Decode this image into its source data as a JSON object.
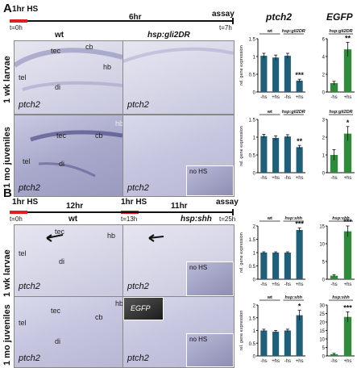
{
  "panelA": {
    "letter": "A",
    "timeline": {
      "hs_label": "1hr HS",
      "mid_label": "6hr",
      "assay_label": "assay",
      "t_start": "t=0h",
      "t_end": "t=7h"
    },
    "col_wt": "wt",
    "col_tg": "hsp:gli2DR",
    "row1_label": "1 wk larvae",
    "row2_label": "1 mo juveniles",
    "gene_label": "ptch2",
    "anatomy_row1": [
      "tec",
      "cb",
      "hb",
      "tel",
      "di"
    ],
    "anatomy_row2": [
      "tec",
      "cb",
      "hb",
      "tel",
      "di"
    ],
    "inset_label": "no HS"
  },
  "panelB": {
    "letter": "B",
    "timeline": {
      "hs1_label": "1hr HS",
      "mid1_label": "12hr",
      "hs2_label": "1hr HS",
      "mid2_label": "11hr",
      "assay_label": "assay",
      "t_start": "t=0h",
      "t_mid": "t=13h",
      "t_end": "t=25h"
    },
    "col_wt": "wt",
    "col_tg": "hsp:shh",
    "row1_label": "1 wk larvae",
    "row2_label": "1 mo juveniles",
    "gene_label": "ptch2",
    "anatomy_row1": [
      "tec",
      "hb",
      "tel",
      "di"
    ],
    "anatomy_row2": [
      "tec",
      "cb",
      "hb",
      "tel",
      "di"
    ],
    "inset_label": "no HS",
    "egfp_inset_label": "EGFP"
  },
  "headers": {
    "ptch2": "ptch2",
    "egfp": "EGFP"
  },
  "colors": {
    "blue_bar": "#1f5f7a",
    "green_bar": "#2e8b3a",
    "timeline_red": "#e02020"
  },
  "chart_data": [
    {
      "id": "A-ptch2-1wk",
      "type": "bar",
      "categories": [
        "-hs",
        "+hs",
        "-hs",
        "+hs"
      ],
      "values": [
        1.02,
        0.97,
        1.02,
        0.32
      ],
      "errors": [
        0.07,
        0.07,
        0.07,
        0.04
      ],
      "groups": [
        "wt",
        "hsp:gli2DR"
      ],
      "ylabel": "rel. gene expression",
      "ylim": [
        0,
        1.5
      ],
      "yticks": [
        0,
        0.5,
        1,
        1.5
      ],
      "annotation": "***",
      "annot_index": 3,
      "color": "#1f5f7a"
    },
    {
      "id": "A-egfp-1wk",
      "type": "bar",
      "categories": [
        "-hs",
        "+hs"
      ],
      "values": [
        1.0,
        4.8
      ],
      "errors": [
        0.2,
        0.8
      ],
      "groups": [
        "hsp:gli2DR"
      ],
      "ylim": [
        0,
        6
      ],
      "yticks": [
        0,
        2,
        4,
        6
      ],
      "annotation": "**",
      "annot_index": 1,
      "color": "#2e8b3a"
    },
    {
      "id": "A-ptch2-1mo",
      "type": "bar",
      "categories": [
        "-hs",
        "+hs",
        "-hs",
        "+hs"
      ],
      "values": [
        1.03,
        0.98,
        1.02,
        0.72
      ],
      "errors": [
        0.05,
        0.06,
        0.05,
        0.05
      ],
      "groups": [
        "wt",
        "hsp:gli2DR"
      ],
      "ylabel": "rel. gene expression",
      "ylim": [
        0,
        1.5
      ],
      "yticks": [
        0,
        0.5,
        1,
        1.5
      ],
      "annotation": "**",
      "annot_index": 3,
      "color": "#1f5f7a"
    },
    {
      "id": "A-egfp-1mo",
      "type": "bar",
      "categories": [
        "-hs",
        "+hs"
      ],
      "values": [
        1.0,
        2.2
      ],
      "errors": [
        0.3,
        0.4
      ],
      "groups": [
        "hsp:gli2DR"
      ],
      "ylim": [
        0,
        3
      ],
      "yticks": [
        0,
        1,
        2,
        3
      ],
      "annotation": "*",
      "annot_index": 1,
      "color": "#2e8b3a"
    },
    {
      "id": "B-ptch2-1wk",
      "type": "bar",
      "categories": [
        "-hs",
        "+hs",
        "-hs",
        "+hs"
      ],
      "values": [
        1.0,
        1.0,
        1.0,
        1.85
      ],
      "errors": [
        0.03,
        0.03,
        0.03,
        0.08
      ],
      "groups": [
        "wt",
        "hsp:shh"
      ],
      "ylabel": "rel. gene expression",
      "ylim": [
        0,
        2
      ],
      "yticks": [
        0,
        0.5,
        1,
        1.5,
        2
      ],
      "annotation": "***",
      "annot_index": 3,
      "color": "#1f5f7a"
    },
    {
      "id": "B-egfp-1wk",
      "type": "bar",
      "categories": [
        "-hs",
        "+hs"
      ],
      "values": [
        1.0,
        13.5
      ],
      "errors": [
        0.3,
        1.5
      ],
      "groups": [
        "hsp:shh"
      ],
      "ylim": [
        0,
        15
      ],
      "yticks": [
        0,
        5,
        10,
        15
      ],
      "annotation": "***",
      "annot_index": 1,
      "color": "#2e8b3a"
    },
    {
      "id": "B-ptch2-1mo",
      "type": "bar",
      "categories": [
        "-hs",
        "+hs",
        "-hs",
        "+hs"
      ],
      "values": [
        1.0,
        0.95,
        1.0,
        1.6
      ],
      "errors": [
        0.05,
        0.05,
        0.05,
        0.2
      ],
      "groups": [
        "wt",
        "hsp:shh"
      ],
      "ylabel": "rel. gene expression",
      "ylim": [
        0,
        2
      ],
      "yticks": [
        0,
        0.5,
        1,
        1.5,
        2
      ],
      "annotation": "*",
      "annot_index": 3,
      "color": "#1f5f7a"
    },
    {
      "id": "B-egfp-1mo",
      "type": "bar",
      "categories": [
        "-hs",
        "+hs"
      ],
      "values": [
        1.0,
        23.0
      ],
      "errors": [
        0.5,
        3.0
      ],
      "groups": [
        "hsp:shh"
      ],
      "ylim": [
        0,
        30
      ],
      "yticks": [
        0,
        5,
        10,
        15,
        20,
        25,
        30
      ],
      "annotation": "***",
      "annot_index": 1,
      "color": "#2e8b3a"
    }
  ]
}
